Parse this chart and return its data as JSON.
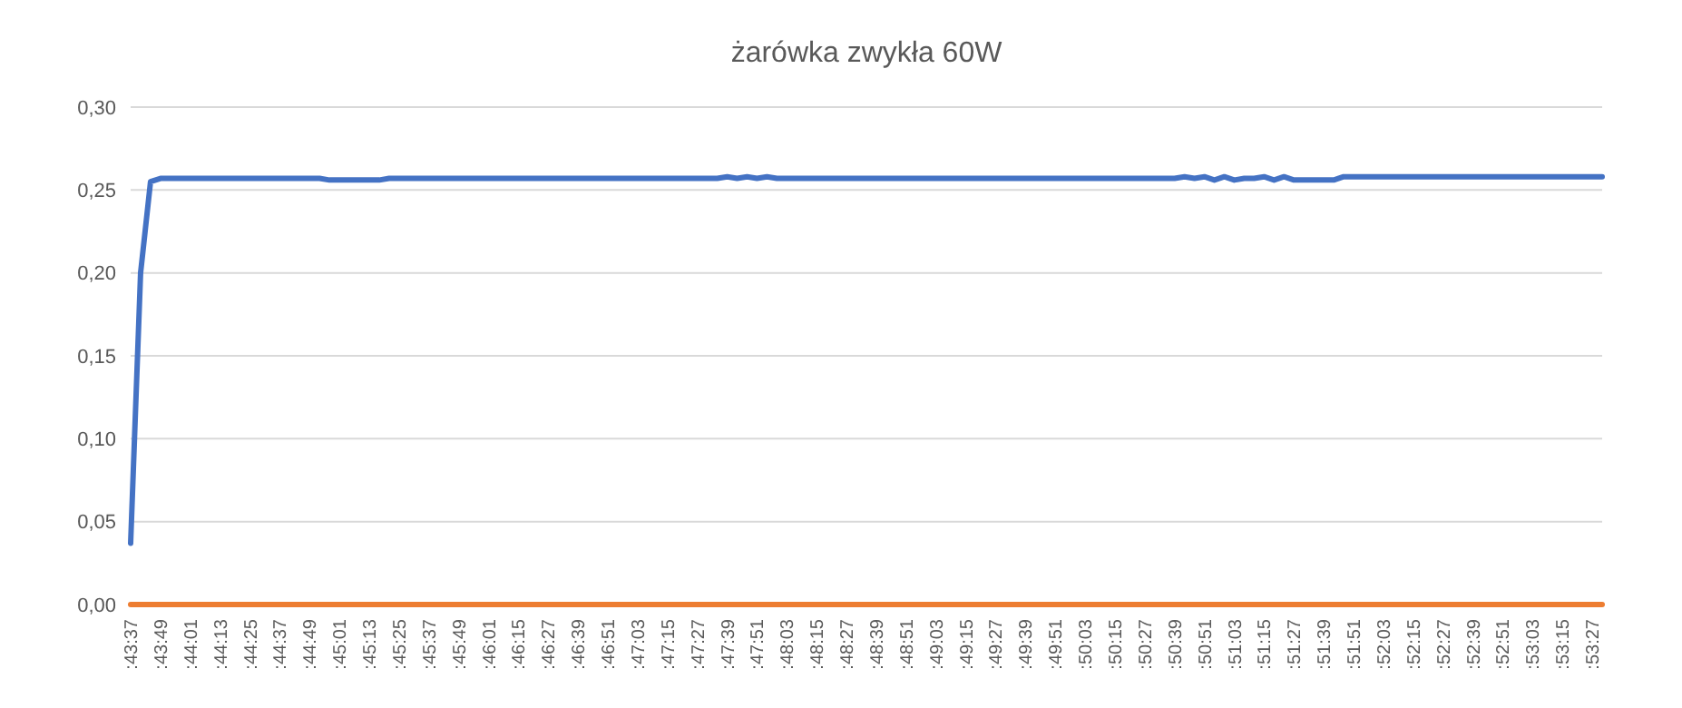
{
  "chart_data": {
    "type": "line",
    "title": "żarówka zwykła 60W",
    "categories": [
      ":43:37",
      null,
      null,
      ":43:49",
      null,
      null,
      ":44:01",
      null,
      null,
      ":44:13",
      null,
      null,
      ":44:25",
      null,
      null,
      ":44:37",
      null,
      null,
      ":44:49",
      null,
      null,
      ":45:01",
      null,
      null,
      ":45:13",
      null,
      null,
      ":45:25",
      null,
      null,
      ":45:37",
      null,
      null,
      ":45:49",
      null,
      null,
      ":46:01",
      null,
      null,
      ":46:15",
      null,
      null,
      ":46:27",
      null,
      null,
      ":46:39",
      null,
      null,
      ":46:51",
      null,
      null,
      ":47:03",
      null,
      null,
      ":47:15",
      null,
      null,
      ":47:27",
      null,
      null,
      ":47:39",
      null,
      null,
      ":47:51",
      null,
      null,
      ":48:03",
      null,
      null,
      ":48:15",
      null,
      null,
      ":48:27",
      null,
      null,
      ":48:39",
      null,
      null,
      ":48:51",
      null,
      null,
      ":49:03",
      null,
      null,
      ":49:15",
      null,
      null,
      ":49:27",
      null,
      null,
      ":49:39",
      null,
      null,
      ":49:51",
      null,
      null,
      ":50:03",
      null,
      null,
      ":50:15",
      null,
      null,
      ":50:27",
      null,
      null,
      ":50:39",
      null,
      null,
      ":50:51",
      null,
      null,
      ":51:03",
      null,
      null,
      ":51:15",
      null,
      null,
      ":51:27",
      null,
      null,
      ":51:39",
      null,
      null,
      ":51:51",
      null,
      null,
      ":52:03",
      null,
      null,
      ":52:15",
      null,
      null,
      ":52:27",
      null,
      null,
      ":52:39",
      null,
      null,
      ":52:51",
      null,
      null,
      ":53:03",
      null,
      null,
      ":53:15",
      null,
      null,
      ":53:27",
      null
    ],
    "series": [
      {
        "color": "#4472c4",
        "values": [
          0.037,
          0.2,
          0.255,
          0.257,
          0.257,
          0.257,
          0.257,
          0.257,
          0.257,
          0.257,
          0.257,
          0.257,
          0.257,
          0.257,
          0.257,
          0.257,
          0.257,
          0.257,
          0.257,
          0.257,
          0.256,
          0.256,
          0.256,
          0.256,
          0.256,
          0.256,
          0.257,
          0.257,
          0.257,
          0.257,
          0.257,
          0.257,
          0.257,
          0.257,
          0.257,
          0.257,
          0.257,
          0.257,
          0.257,
          0.257,
          0.257,
          0.257,
          0.257,
          0.257,
          0.257,
          0.257,
          0.257,
          0.257,
          0.257,
          0.257,
          0.257,
          0.257,
          0.257,
          0.257,
          0.257,
          0.257,
          0.257,
          0.257,
          0.257,
          0.257,
          0.258,
          0.257,
          0.258,
          0.257,
          0.258,
          0.257,
          0.257,
          0.257,
          0.257,
          0.257,
          0.257,
          0.257,
          0.257,
          0.257,
          0.257,
          0.257,
          0.257,
          0.257,
          0.257,
          0.257,
          0.257,
          0.257,
          0.257,
          0.257,
          0.257,
          0.257,
          0.257,
          0.257,
          0.257,
          0.257,
          0.257,
          0.257,
          0.257,
          0.257,
          0.257,
          0.257,
          0.257,
          0.257,
          0.257,
          0.257,
          0.257,
          0.257,
          0.257,
          0.257,
          0.257,
          0.257,
          0.258,
          0.257,
          0.258,
          0.256,
          0.258,
          0.256,
          0.257,
          0.257,
          0.258,
          0.256,
          0.258,
          0.256,
          0.256,
          0.256,
          0.256,
          0.256,
          0.258,
          0.258,
          0.258,
          0.258,
          0.258,
          0.258,
          0.258,
          0.258,
          0.258,
          0.258,
          0.258,
          0.258,
          0.258,
          0.258,
          0.258,
          0.258,
          0.258,
          0.258,
          0.258,
          0.258,
          0.258,
          0.258,
          0.258,
          0.258,
          0.258,
          0.258,
          0.258
        ]
      },
      {
        "color": "#ed7d31",
        "values": [
          0,
          0,
          0,
          0,
          0,
          0,
          0,
          0,
          0,
          0,
          0,
          0,
          0,
          0,
          0,
          0,
          0,
          0,
          0,
          0,
          0,
          0,
          0,
          0,
          0,
          0,
          0,
          0,
          0,
          0,
          0,
          0,
          0,
          0,
          0,
          0,
          0,
          0,
          0,
          0,
          0,
          0,
          0,
          0,
          0,
          0,
          0,
          0,
          0,
          0,
          0,
          0,
          0,
          0,
          0,
          0,
          0,
          0,
          0,
          0,
          0,
          0,
          0,
          0,
          0,
          0,
          0,
          0,
          0,
          0,
          0,
          0,
          0,
          0,
          0,
          0,
          0,
          0,
          0,
          0,
          0,
          0,
          0,
          0,
          0,
          0,
          0,
          0,
          0,
          0,
          0,
          0,
          0,
          0,
          0,
          0,
          0,
          0,
          0,
          0,
          0,
          0,
          0,
          0,
          0,
          0,
          0,
          0,
          0,
          0,
          0,
          0,
          0,
          0,
          0,
          0,
          0,
          0,
          0,
          0,
          0,
          0,
          0,
          0,
          0,
          0,
          0,
          0,
          0,
          0,
          0,
          0,
          0,
          0,
          0,
          0,
          0,
          0,
          0,
          0,
          0,
          0,
          0,
          0,
          0,
          0,
          0,
          0,
          0
        ]
      }
    ],
    "ylim": [
      0,
      0.3
    ],
    "yticks": [
      {
        "value": 0,
        "label": "0,00"
      },
      {
        "value": 0.05,
        "label": "0,05"
      },
      {
        "value": 0.1,
        "label": "0,10"
      },
      {
        "value": 0.15,
        "label": "0,15"
      },
      {
        "value": 0.2,
        "label": "0,20"
      },
      {
        "value": 0.25,
        "label": "0,25"
      },
      {
        "value": 0.3,
        "label": "0,30"
      }
    ],
    "grid": "y"
  }
}
